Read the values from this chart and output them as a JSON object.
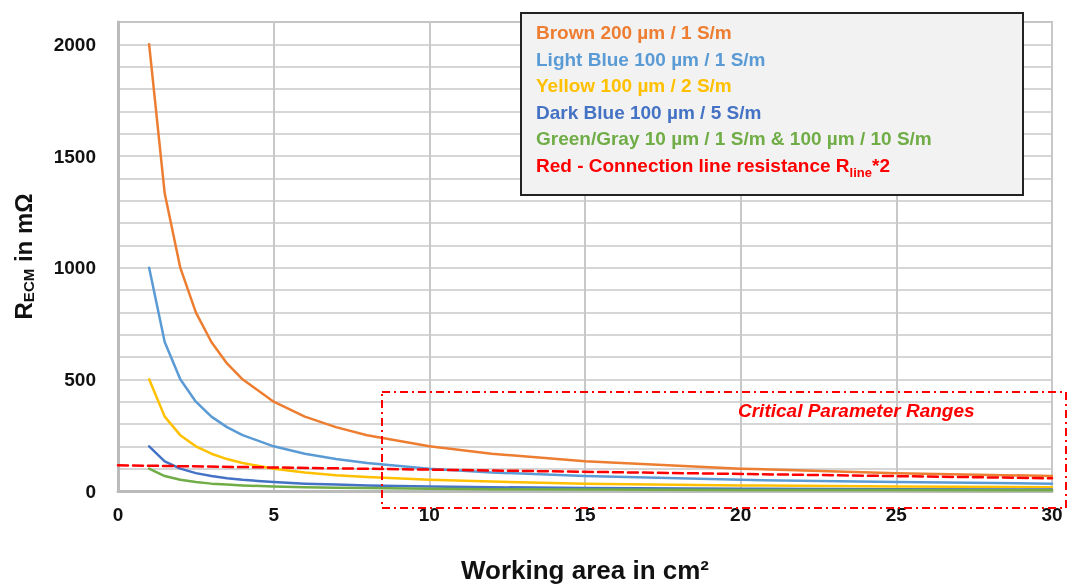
{
  "chart_data": {
    "type": "line",
    "xlabel": "Working area in cm²",
    "ylabel": "R$_{ECM}$ in mΩ",
    "xlim": [
      0,
      30
    ],
    "xticks": [
      0,
      5,
      10,
      15,
      20,
      25,
      30
    ],
    "ylim": [
      0,
      2100
    ],
    "yticks": [
      0,
      500,
      1000,
      1500,
      2000
    ],
    "grid": true,
    "legend": "top right",
    "marker": "none",
    "line_style": "solid",
    "annotations": [
      "Critical Parameter Ranges"
    ],
    "series": [
      {
        "name": "Brown 200 µm / 1 S/m",
        "color": "#ed7d31",
        "x": [
          1,
          1.5,
          2,
          2.5,
          3,
          3.5,
          4,
          5,
          6,
          7,
          8,
          10,
          12,
          15,
          20,
          25,
          30
        ],
        "values": [
          2000,
          1333,
          1000,
          800,
          667,
          571,
          500,
          400,
          333,
          286,
          250,
          200,
          167,
          133,
          100,
          80,
          67
        ]
      },
      {
        "name": "Light Blue 100 µm / 1 S/m",
        "color": "#5b9bd5",
        "x": [
          1,
          1.5,
          2,
          2.5,
          3,
          3.5,
          4,
          5,
          6,
          7,
          8,
          10,
          12,
          15,
          20,
          25,
          30
        ],
        "values": [
          1000,
          667,
          500,
          400,
          333,
          286,
          250,
          200,
          167,
          143,
          125,
          100,
          83,
          67,
          50,
          40,
          33
        ]
      },
      {
        "name": "Yellow 100 µm / 2 S/m",
        "color": "#ffc000",
        "x": [
          1,
          1.5,
          2,
          2.5,
          3,
          3.5,
          4,
          5,
          6,
          7,
          8,
          10,
          12,
          15,
          20,
          25,
          30
        ],
        "values": [
          500,
          333,
          250,
          200,
          167,
          143,
          125,
          100,
          83,
          71,
          63,
          50,
          42,
          33,
          25,
          20,
          17
        ]
      },
      {
        "name": "Dark Blue 100 µm / 5 S/m",
        "color": "#4472c4",
        "x": [
          1,
          1.5,
          2,
          2.5,
          3,
          3.5,
          4,
          5,
          6,
          7,
          8,
          10,
          12,
          15,
          20,
          25,
          30
        ],
        "values": [
          200,
          133,
          100,
          80,
          67,
          57,
          50,
          40,
          33,
          29,
          25,
          20,
          17,
          13,
          10,
          8,
          7
        ]
      },
      {
        "name": "Green/Gray 10 µm / 1 S/m & 100 µm / 10 S/m",
        "color": "#70ad47",
        "x": [
          1,
          1.5,
          2,
          2.5,
          3,
          3.5,
          4,
          5,
          6,
          7,
          8,
          10,
          12,
          15,
          20,
          25,
          30
        ],
        "values": [
          100,
          67,
          50,
          40,
          33,
          29,
          25,
          20,
          17,
          14,
          13,
          10,
          8,
          7,
          5,
          4,
          3
        ]
      },
      {
        "name": "Red - Connection line resistance R$_{line}$*2",
        "color": "#ff0000",
        "line_style": "dashed",
        "x": [
          0,
          30
        ],
        "values": [
          115,
          57
        ]
      }
    ]
  }
}
